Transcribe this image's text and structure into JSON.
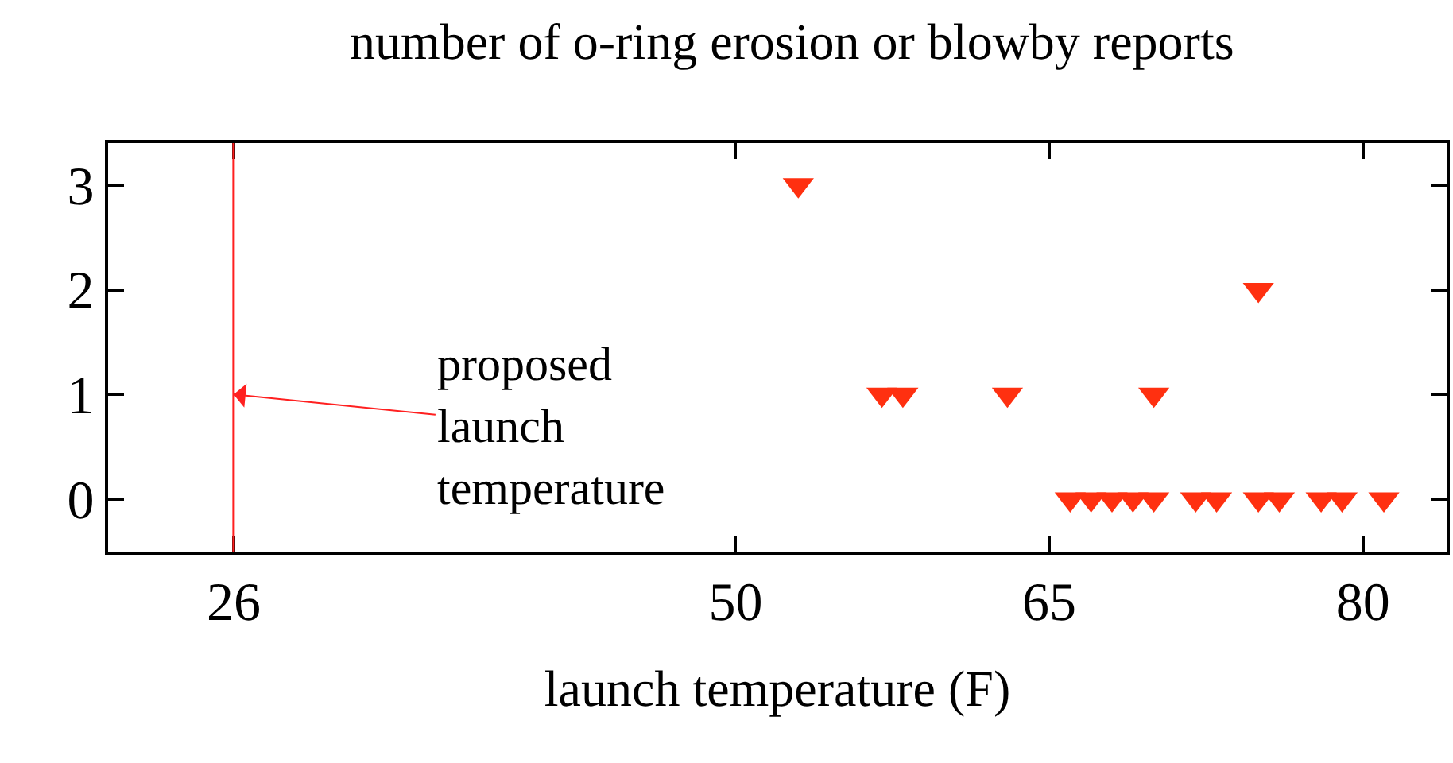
{
  "chart_data": {
    "type": "scatter",
    "title": "number of o-ring erosion or blowby reports",
    "xlabel": "launch temperature (F)",
    "x": [
      53,
      57,
      58,
      63,
      70,
      75,
      66,
      67,
      68,
      69,
      70,
      72,
      73,
      75,
      76,
      78,
      79,
      81
    ],
    "series": [
      {
        "color": "#ff3010",
        "values": [
          3,
          1,
          1,
          1,
          1,
          2,
          0,
          0,
          0,
          0,
          0,
          0,
          0,
          0,
          0,
          0,
          0,
          0
        ]
      }
    ],
    "xlim": [
      20,
      84
    ],
    "xticks": [
      26,
      50,
      65,
      80
    ],
    "ylim": [
      -0.5,
      3.4
    ],
    "yticks": [
      0,
      1,
      2,
      3
    ],
    "ref_lines": [
      {
        "axis": "x",
        "value": 26,
        "color": "#ff2020"
      }
    ],
    "annotations": [
      {
        "text": "proposed\nlaunch\ntemperature",
        "x": 26,
        "y": 1
      }
    ],
    "marker": "triangle"
  }
}
